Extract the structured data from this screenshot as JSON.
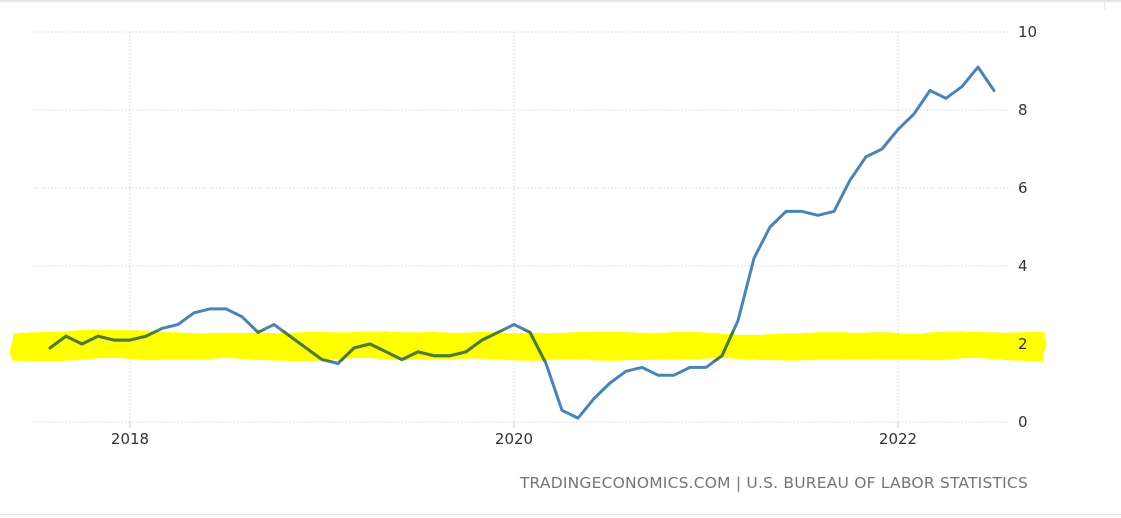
{
  "source_text": "TRADINGECONOMICS.COM | U.S. BUREAU OF LABOR STATISTICS",
  "chart_data": {
    "type": "line",
    "title": "",
    "xlabel": "",
    "ylabel": "",
    "ylim": [
      0,
      10
    ],
    "xlim": [
      "2017-07",
      "2022-08"
    ],
    "y_ticks": [
      "0",
      "2",
      "4",
      "6",
      "8",
      "10"
    ],
    "x_ticks": [
      {
        "label": "2018",
        "date": "2018-01"
      },
      {
        "label": "2020",
        "date": "2020-01"
      },
      {
        "label": "2022",
        "date": "2022-01"
      }
    ],
    "grid": "dotted",
    "legend": "none",
    "colors": {
      "line": "#4a84b7",
      "line_in_band": "#4f7c33",
      "highlight_band": "#ffff00",
      "grid": "#d4d4d4",
      "tick_text": "#333333",
      "source_text": "#757575"
    },
    "highlight_band": {
      "y_low": 1.6,
      "y_high": 2.3
    },
    "series": [
      {
        "x": [
          "2017-08",
          "2017-09",
          "2017-10",
          "2017-11",
          "2017-12",
          "2018-01",
          "2018-02",
          "2018-03",
          "2018-04",
          "2018-05",
          "2018-06",
          "2018-07",
          "2018-08",
          "2018-09",
          "2018-10",
          "2018-11",
          "2018-12",
          "2019-01",
          "2019-02",
          "2019-03",
          "2019-04",
          "2019-05",
          "2019-06",
          "2019-07",
          "2019-08",
          "2019-09",
          "2019-10",
          "2019-11",
          "2019-12",
          "2020-01",
          "2020-02",
          "2020-03",
          "2020-04",
          "2020-05",
          "2020-06",
          "2020-07",
          "2020-08",
          "2020-09",
          "2020-10",
          "2020-11",
          "2020-12",
          "2021-01",
          "2021-02",
          "2021-03",
          "2021-04",
          "2021-05",
          "2021-06",
          "2021-07",
          "2021-08",
          "2021-09",
          "2021-10",
          "2021-11",
          "2021-12",
          "2022-01",
          "2022-02",
          "2022-03",
          "2022-04",
          "2022-05",
          "2022-06",
          "2022-07"
        ],
        "values": [
          1.9,
          2.2,
          2.0,
          2.2,
          2.1,
          2.1,
          2.2,
          2.4,
          2.5,
          2.8,
          2.9,
          2.9,
          2.7,
          2.3,
          2.5,
          2.2,
          1.9,
          1.6,
          1.5,
          1.9,
          2.0,
          1.8,
          1.6,
          1.8,
          1.7,
          1.7,
          1.8,
          2.1,
          2.3,
          2.5,
          2.3,
          1.5,
          0.3,
          0.1,
          0.6,
          1.0,
          1.3,
          1.4,
          1.2,
          1.2,
          1.4,
          1.4,
          1.7,
          2.6,
          4.2,
          5.0,
          5.4,
          5.4,
          5.3,
          5.4,
          6.2,
          6.8,
          7.0,
          7.5,
          7.9,
          8.5,
          8.3,
          8.6,
          9.1,
          8.5
        ]
      }
    ]
  }
}
